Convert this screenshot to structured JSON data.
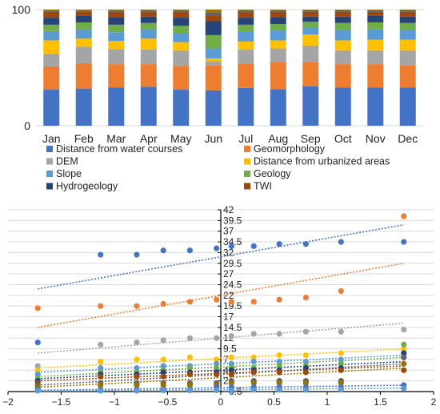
{
  "chart_data": [
    {
      "type": "bar",
      "stacked": true,
      "normalized": true,
      "categories": [
        "Jan",
        "Feb",
        "Mar",
        "Apr",
        "May",
        "Jun",
        "Jul",
        "Aug",
        "Sep",
        "Oct",
        "Nov",
        "Dec"
      ],
      "ylim": [
        0,
        100
      ],
      "yticks": [
        "0",
        "100"
      ],
      "grid": true,
      "legend_position": "bottom",
      "series": [
        {
          "name": "Distance from water courses",
          "color": "#4472C4",
          "values": [
            31,
            32,
            33,
            33.5,
            31,
            30.5,
            32.5,
            31.5,
            34,
            33,
            33,
            33
          ]
        },
        {
          "name": "Geomorphology",
          "color": "#ED7D31",
          "values": [
            20,
            22,
            20,
            19.5,
            20.5,
            21.5,
            21,
            23,
            21,
            20,
            20,
            19
          ]
        },
        {
          "name": "DEM",
          "color": "#A5A5A5",
          "values": [
            11,
            14,
            13,
            12.5,
            13.5,
            3.5,
            12,
            12,
            14,
            12,
            12,
            13
          ]
        },
        {
          "name": "Distance from urbanized areas",
          "color": "#FFC000",
          "values": [
            11.5,
            7,
            7,
            9.5,
            7,
            2.5,
            7,
            7,
            9.5,
            8.5,
            9,
            9
          ]
        },
        {
          "name": "Slope",
          "color": "#5B9BD5",
          "values": [
            8,
            8,
            7.5,
            8,
            8,
            8.5,
            8.5,
            8.5,
            6,
            9,
            9,
            8.5
          ]
        },
        {
          "name": "Geology",
          "color": "#70AD47",
          "values": [
            5.5,
            6,
            6.5,
            5.5,
            6,
            11.5,
            6,
            5.5,
            5,
            6,
            6,
            6
          ]
        },
        {
          "name": "Hydrogeology",
          "color": "#264478",
          "values": [
            6,
            5.5,
            6.5,
            5.5,
            7,
            12,
            6,
            6,
            4.5,
            5.5,
            5.5,
            5.5
          ]
        },
        {
          "name": "TWI",
          "color": "#9E480E",
          "values": [
            5,
            4,
            4.5,
            4,
            5,
            4.5,
            5,
            4.5,
            4,
            4,
            3.5,
            4
          ]
        },
        {
          "name": "",
          "color": "#636363",
          "values": [
            1,
            1,
            1.5,
            1.5,
            1.5,
            3,
            1.5,
            1.5,
            1.5,
            1.5,
            1.5,
            1.5
          ]
        },
        {
          "name": "",
          "color": "#997300",
          "values": [
            1,
            0.5,
            0.5,
            0.5,
            0.5,
            2.5,
            0.5,
            0.5,
            0.5,
            0.5,
            0.5,
            0.5
          ]
        }
      ]
    },
    {
      "type": "scatter",
      "xlim": [
        -2,
        2
      ],
      "ylim": [
        -0.5,
        42
      ],
      "xticks": [
        "−2",
        "−1.5",
        "−1",
        "−0.5",
        "0",
        "0.5",
        "1",
        "1.5",
        "2"
      ],
      "yticks": [
        "−0.5",
        "2",
        "4.5",
        "7",
        "9.5",
        "12",
        "14.5",
        "17",
        "19.5",
        "22",
        "24.5",
        "27",
        "29.5",
        "32",
        "34.5",
        "37",
        "39.5",
        "42"
      ],
      "grid": true,
      "trendlines": true,
      "x": [
        -1.72,
        -1.13,
        -0.79,
        -0.54,
        -0.29,
        -0.04,
        0.1,
        0.31,
        0.55,
        0.8,
        1.13,
        1.72
      ],
      "series": [
        {
          "color": "#4472C4",
          "values": [
            11,
            31.5,
            31.5,
            32.5,
            32.5,
            33,
            33.5,
            33.5,
            34,
            34,
            34.5,
            34.5
          ],
          "trend": [
            23.5,
            38.5
          ]
        },
        {
          "color": "#ED7D31",
          "values": [
            19,
            19.5,
            19.5,
            20,
            20.5,
            21,
            20.5,
            20.5,
            21,
            21.5,
            23,
            40.5
          ],
          "trend": [
            14.5,
            29.5
          ]
        },
        {
          "color": "#A5A5A5",
          "values": [
            5.5,
            10.5,
            11,
            11.5,
            12,
            12,
            12.5,
            13,
            13,
            13.5,
            13.5,
            14
          ],
          "trend": [
            8.5,
            15.5
          ]
        },
        {
          "color": "#FFC000",
          "values": [
            4.5,
            6.5,
            7,
            7,
            7.5,
            7,
            7.5,
            7.5,
            8,
            8,
            8.5,
            9.5
          ],
          "trend": [
            5,
            9.5
          ]
        },
        {
          "color": "#5B9BD5",
          "values": [
            3.5,
            5,
            5,
            5.5,
            5.5,
            6,
            6,
            6.5,
            6.5,
            6.5,
            7,
            7.5
          ],
          "trend": [
            4,
            8
          ]
        },
        {
          "color": "#70AD47",
          "values": [
            2.5,
            4,
            4,
            4.5,
            5,
            5,
            5,
            5,
            5.5,
            5.5,
            6,
            10.5
          ],
          "trend": [
            3,
            7.5
          ]
        },
        {
          "color": "#264478",
          "values": [
            2,
            3.5,
            3.5,
            4,
            4,
            4,
            4.5,
            4.5,
            4.5,
            5,
            5,
            8.5
          ],
          "trend": [
            2.5,
            6.5
          ]
        },
        {
          "color": "#9E480E",
          "values": [
            1.5,
            3,
            3,
            3,
            3.5,
            3.5,
            3.5,
            4,
            4,
            4,
            4.5,
            4.5
          ],
          "trend": [
            2,
            5.5
          ]
        },
        {
          "color": "#636363",
          "values": [
            1,
            1.5,
            1.5,
            1.5,
            1.5,
            1.5,
            2,
            2,
            2,
            2,
            2,
            7.5
          ],
          "trend": [
            1,
            6
          ]
        },
        {
          "color": "#997300",
          "values": [
            0.5,
            1,
            1,
            1,
            1,
            1,
            1.5,
            1.5,
            1.5,
            1.5,
            1.5,
            6
          ],
          "trend": [
            0.5,
            5
          ]
        },
        {
          "color": "#4472C4",
          "values": [
            0,
            0,
            0,
            0,
            0,
            0.5,
            0.5,
            0.5,
            0.5,
            0.5,
            0.5,
            1
          ],
          "trend": [
            -0.2,
            1
          ]
        },
        {
          "color": "#5B9BD5",
          "values": [
            -0.3,
            -0.3,
            -0.3,
            -0.2,
            -0.2,
            -0.2,
            -0.2,
            -0.1,
            -0.1,
            -0.1,
            0,
            0.2
          ],
          "trend": [
            -0.4,
            0.3
          ]
        }
      ]
    }
  ]
}
